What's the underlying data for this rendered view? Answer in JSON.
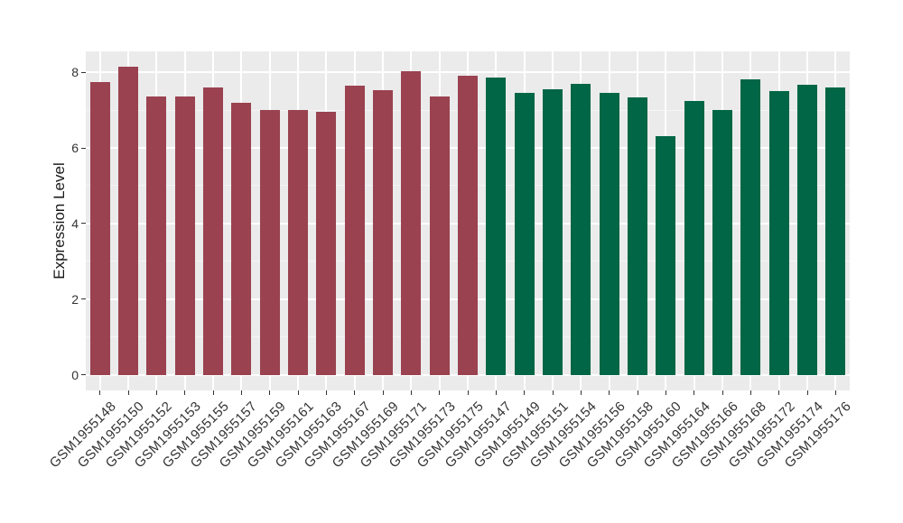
{
  "chart_data": {
    "type": "bar",
    "title": "",
    "xlabel": "",
    "ylabel": "Expression Level",
    "ylim": [
      -0.41,
      8.55
    ],
    "yticks_major": [
      0,
      2,
      4,
      6,
      8
    ],
    "yticks_minor": [
      1,
      3,
      5,
      7
    ],
    "grid": "on",
    "legend_position": "none",
    "bars": [
      {
        "label": "GSM1955148",
        "value": 7.75,
        "group": "group1"
      },
      {
        "label": "GSM1955150",
        "value": 8.14,
        "group": "group1"
      },
      {
        "label": "GSM1955152",
        "value": 7.35,
        "group": "group1"
      },
      {
        "label": "GSM1955153",
        "value": 7.35,
        "group": "group1"
      },
      {
        "label": "GSM1955155",
        "value": 7.6,
        "group": "group1"
      },
      {
        "label": "GSM1955157",
        "value": 7.18,
        "group": "group1"
      },
      {
        "label": "GSM1955159",
        "value": 7.0,
        "group": "group1"
      },
      {
        "label": "GSM1955161",
        "value": 7.0,
        "group": "group1"
      },
      {
        "label": "GSM1955163",
        "value": 6.95,
        "group": "group1"
      },
      {
        "label": "GSM1955167",
        "value": 7.65,
        "group": "group1"
      },
      {
        "label": "GSM1955169",
        "value": 7.52,
        "group": "group1"
      },
      {
        "label": "GSM1955171",
        "value": 8.03,
        "group": "group1"
      },
      {
        "label": "GSM1955173",
        "value": 7.36,
        "group": "group1"
      },
      {
        "label": "GSM1955175",
        "value": 7.9,
        "group": "group1"
      },
      {
        "label": "GSM1955147",
        "value": 7.85,
        "group": "group2"
      },
      {
        "label": "GSM1955149",
        "value": 7.45,
        "group": "group2"
      },
      {
        "label": "GSM1955151",
        "value": 7.56,
        "group": "group2"
      },
      {
        "label": "GSM1955154",
        "value": 7.7,
        "group": "group2"
      },
      {
        "label": "GSM1955156",
        "value": 7.45,
        "group": "group2"
      },
      {
        "label": "GSM1955158",
        "value": 7.33,
        "group": "group2"
      },
      {
        "label": "GSM1955160",
        "value": 6.3,
        "group": "group2"
      },
      {
        "label": "GSM1955164",
        "value": 7.25,
        "group": "group2"
      },
      {
        "label": "GSM1955166",
        "value": 7.0,
        "group": "group2"
      },
      {
        "label": "GSM1955168",
        "value": 7.8,
        "group": "group2"
      },
      {
        "label": "GSM1955172",
        "value": 7.5,
        "group": "group2"
      },
      {
        "label": "GSM1955174",
        "value": 7.67,
        "group": "group2"
      },
      {
        "label": "GSM1955176",
        "value": 7.6,
        "group": "group2"
      }
    ],
    "group_colors": {
      "group1": "#9A4250",
      "group2": "#006645"
    },
    "style_colors": {
      "panel_bg": "#EBEBEB",
      "grid_major": "#FFFFFF",
      "grid_minor": "#F5F5F5",
      "tick": "#333333",
      "axis_text": "#333333",
      "axis_title": "#1A1A1A"
    }
  }
}
